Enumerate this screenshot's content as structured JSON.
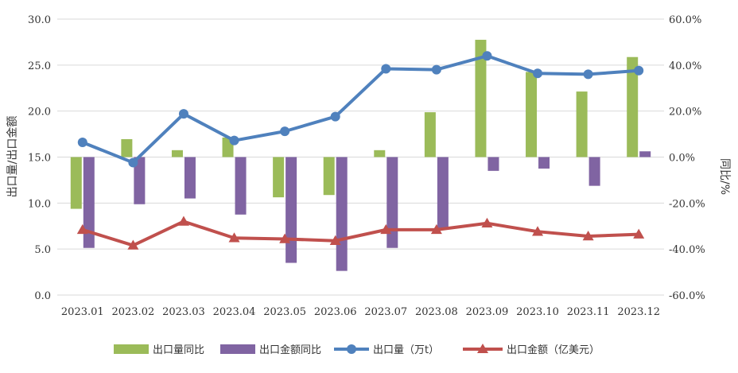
{
  "chart_data": {
    "type": "bar",
    "categories": [
      "2023.01",
      "2023.02",
      "2023.03",
      "2023.04",
      "2023.05",
      "2023.06",
      "2023.07",
      "2023.08",
      "2023.09",
      "2023.10",
      "2023.11",
      "2023.12"
    ],
    "y_left": {
      "label": "出口量/出口金额",
      "ylim": [
        0,
        30
      ],
      "ticks": [
        "0.0",
        "5.0",
        "10.0",
        "15.0",
        "20.0",
        "25.0",
        "30.0"
      ]
    },
    "y_right": {
      "label": "同比/%",
      "ylim": [
        -60,
        60
      ],
      "ticks": [
        "-60.0%",
        "-40.0%",
        "-20.0%",
        "0.0%",
        "20.0%",
        "40.0%",
        "60.0%"
      ]
    },
    "series": [
      {
        "name": "出口量同比",
        "kind": "bar",
        "axis": "right",
        "color": "#9BBB59",
        "values": [
          -22.5,
          7.8,
          3.0,
          8.5,
          -17.5,
          -16.5,
          3.0,
          19.5,
          51.0,
          37.0,
          28.5,
          43.5
        ]
      },
      {
        "name": "出口金额同比",
        "kind": "bar",
        "axis": "right",
        "color": "#8064A2",
        "values": [
          -39.5,
          -20.5,
          -18.0,
          -25.0,
          -46.0,
          -49.5,
          -39.5,
          -31.0,
          -6.0,
          -5.0,
          -12.5,
          2.5
        ]
      },
      {
        "name": "出口量（万t）",
        "kind": "line",
        "axis": "left",
        "color": "#4F81BD",
        "marker": "circle",
        "values": [
          16.6,
          14.4,
          19.7,
          16.8,
          17.8,
          19.4,
          24.6,
          24.5,
          26.0,
          24.1,
          24.0,
          24.4
        ]
      },
      {
        "name": "出口金额（亿美元）",
        "kind": "line",
        "axis": "left",
        "color": "#C0504D",
        "marker": "triangle",
        "values": [
          7.1,
          5.4,
          8.0,
          6.2,
          6.1,
          5.9,
          7.1,
          7.1,
          7.8,
          6.9,
          6.4,
          6.6
        ]
      }
    ],
    "grid": true,
    "legend": "bottom"
  }
}
